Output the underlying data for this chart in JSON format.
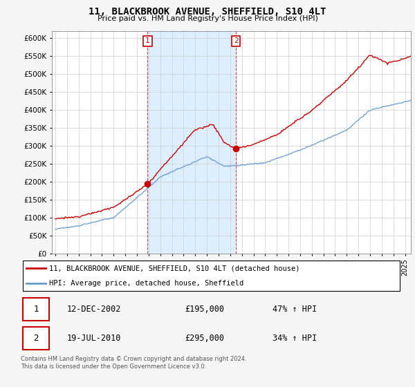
{
  "title": "11, BLACKBROOK AVENUE, SHEFFIELD, S10 4LT",
  "subtitle": "Price paid vs. HM Land Registry's House Price Index (HPI)",
  "property_label": "11, BLACKBROOK AVENUE, SHEFFIELD, S10 4LT (detached house)",
  "hpi_label": "HPI: Average price, detached house, Sheffield",
  "sale1_date": "12-DEC-2002",
  "sale1_price": "£195,000",
  "sale1_hpi": "47% ↑ HPI",
  "sale1_year": 2002.95,
  "sale1_value": 195000,
  "sale2_date": "19-JUL-2010",
  "sale2_price": "£295,000",
  "sale2_hpi": "34% ↑ HPI",
  "sale2_year": 2010.54,
  "sale2_value": 295000,
  "property_color": "#cc0000",
  "hpi_color": "#6699cc",
  "sale_marker_color": "#cc0000",
  "shaded_color": "#ddeeff",
  "vline_color": "#dd4444",
  "ylim": [
    0,
    620000
  ],
  "yticks": [
    0,
    50000,
    100000,
    150000,
    200000,
    250000,
    300000,
    350000,
    400000,
    450000,
    500000,
    550000,
    600000
  ],
  "footnote": "Contains HM Land Registry data © Crown copyright and database right 2024.\nThis data is licensed under the Open Government Licence v3.0.",
  "background_color": "#f5f5f5"
}
